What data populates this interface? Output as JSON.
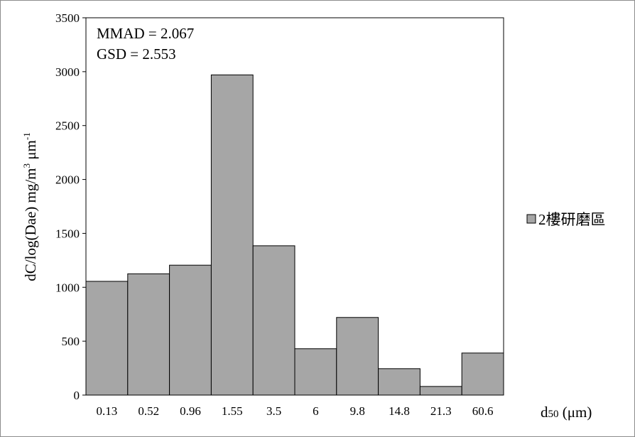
{
  "chart_data": {
    "type": "bar",
    "categories": [
      "0.13",
      "0.52",
      "0.96",
      "1.55",
      "3.5",
      "6",
      "9.8",
      "14.8",
      "21.3",
      "60.6"
    ],
    "series": [
      {
        "name": "2樓研磨區",
        "color": "#a6a6a6",
        "values": [
          1055,
          1125,
          1205,
          2970,
          1385,
          430,
          720,
          245,
          80,
          390
        ]
      }
    ],
    "ylim": [
      0,
      3500
    ],
    "yticks": [
      0,
      500,
      1000,
      1500,
      2000,
      2500,
      3000,
      3500
    ],
    "ylabel": {
      "main": "dC/log(Dae) mg/m",
      "sup1": "3",
      "mid": " μm",
      "sup2": "-1"
    },
    "xlabel": {
      "main": "d",
      "sub": "50",
      "unit": " (μm)"
    },
    "annotations": [
      "MMAD = 2.067",
      "GSD = 2.553"
    ],
    "grid": false,
    "legend": "right"
  }
}
